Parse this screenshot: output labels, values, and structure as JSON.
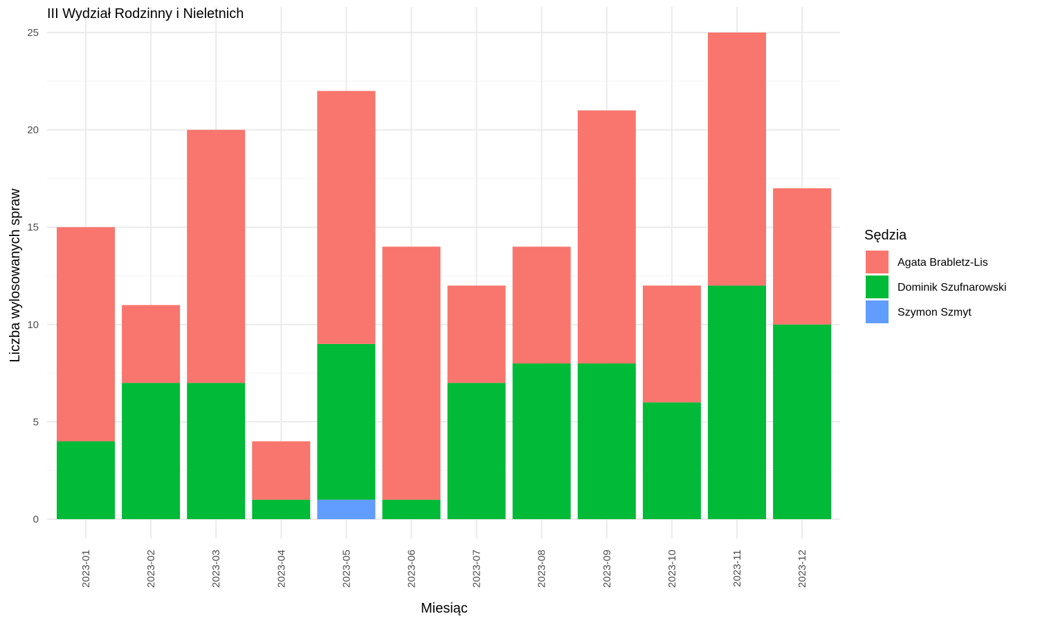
{
  "chart_data": {
    "type": "bar",
    "stacked": true,
    "title": "III Wydział Rodzinny i Nieletnich",
    "xlabel": "Miesiąc",
    "ylabel": "Liczba wylosowanych spraw",
    "ylim": [
      0,
      26.25
    ],
    "yticks": [
      0,
      5,
      10,
      15,
      20,
      25
    ],
    "ytick_labels": [
      "0",
      "5",
      "10",
      "15",
      "20",
      "25"
    ],
    "grid": true,
    "categories": [
      "2023-01",
      "2023-02",
      "2023-03",
      "2023-04",
      "2023-05",
      "2023-06",
      "2023-07",
      "2023-08",
      "2023-09",
      "2023-10",
      "2023-11",
      "2023-12"
    ],
    "stack_order": [
      "Szymon Szmyt",
      "Dominik Szufnarowski",
      "Agata Brabletz-Lis"
    ],
    "series": [
      {
        "name": "Agata Brabletz-Lis",
        "color": "#F8766D",
        "values": [
          11,
          4,
          13,
          3,
          13,
          13,
          5,
          6,
          13,
          6,
          13,
          7
        ]
      },
      {
        "name": "Dominik Szufnarowski",
        "color": "#00BA38",
        "values": [
          4,
          7,
          7,
          1,
          8,
          1,
          7,
          8,
          8,
          6,
          12,
          10
        ]
      },
      {
        "name": "Szymon Szmyt",
        "color": "#619CFF",
        "values": [
          0,
          0,
          0,
          0,
          1,
          0,
          0,
          0,
          0,
          0,
          0,
          0
        ]
      }
    ],
    "legend": {
      "title": "Sędzia",
      "position": "right",
      "entries": [
        "Agata Brabletz-Lis",
        "Dominik Szufnarowski",
        "Szymon Szmyt"
      ]
    }
  }
}
